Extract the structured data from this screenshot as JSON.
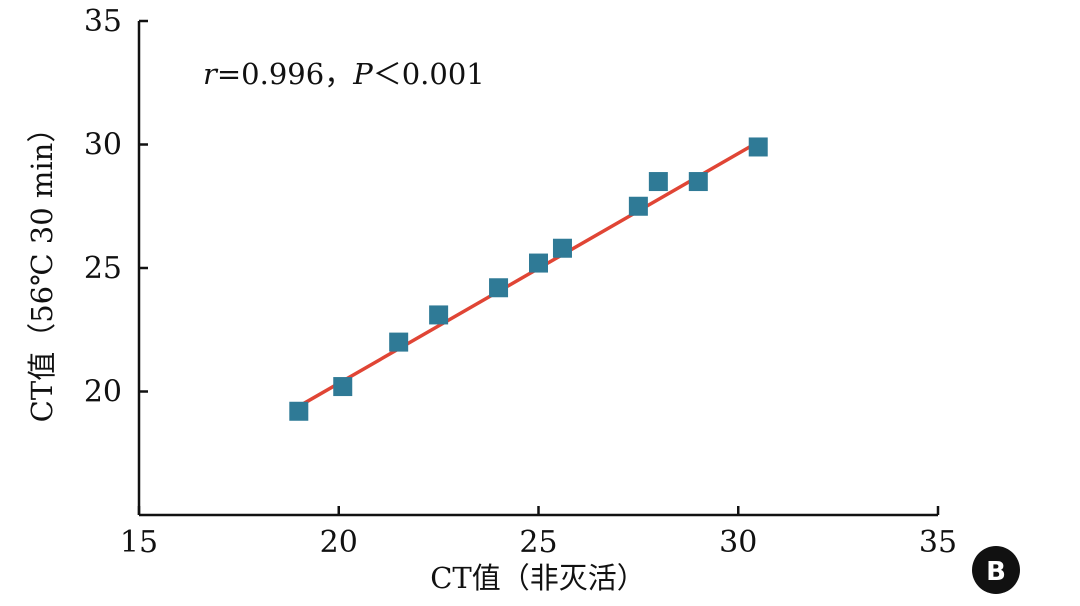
{
  "chart_data": {
    "type": "scatter",
    "xlabel": "CT值（非灭活）",
    "ylabel": "CT值（56℃ 30 min）",
    "xlim": [
      15,
      35
    ],
    "ylim": [
      15,
      35
    ],
    "x_ticks": [
      15,
      20,
      25,
      30,
      35
    ],
    "y_ticks": [
      20,
      25,
      30,
      35
    ],
    "grid": false,
    "annotation": {
      "r_symbol": "r",
      "r_value": "=0.996，",
      "p_symbol": "P",
      "p_value": "＜0.001"
    },
    "points": {
      "x": [
        19.0,
        20.1,
        21.5,
        22.5,
        24.0,
        25.0,
        25.6,
        27.5,
        28.0,
        29.0,
        30.5
      ],
      "y": [
        19.2,
        20.2,
        22.0,
        23.1,
        24.2,
        25.2,
        25.8,
        27.5,
        28.5,
        28.5,
        29.9
      ]
    },
    "fit_line": {
      "x": [
        19.0,
        30.5
      ],
      "y": [
        19.4,
        30.1
      ]
    },
    "colors": {
      "marker": "#2f7a96",
      "line": "#e04535",
      "axis": "#111111"
    },
    "panel_label": "B"
  }
}
